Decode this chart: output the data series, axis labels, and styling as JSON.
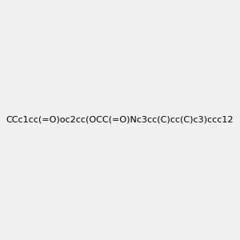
{
  "smiles": "CCc1cc(=O)oc2cc(OCC(=O)Nc3cc(C)cc(C)c3)ccc12",
  "image_size": 300,
  "background_color": "#f0f0f0",
  "title": "",
  "bond_color": "#000000",
  "highlight_colors": {
    "O_carbonyl_coumarin": "#ff0000",
    "O_ether_coumarin": "#ff0000",
    "O_ether_linker": "#ff0000",
    "N_amide": "#0000ff"
  }
}
